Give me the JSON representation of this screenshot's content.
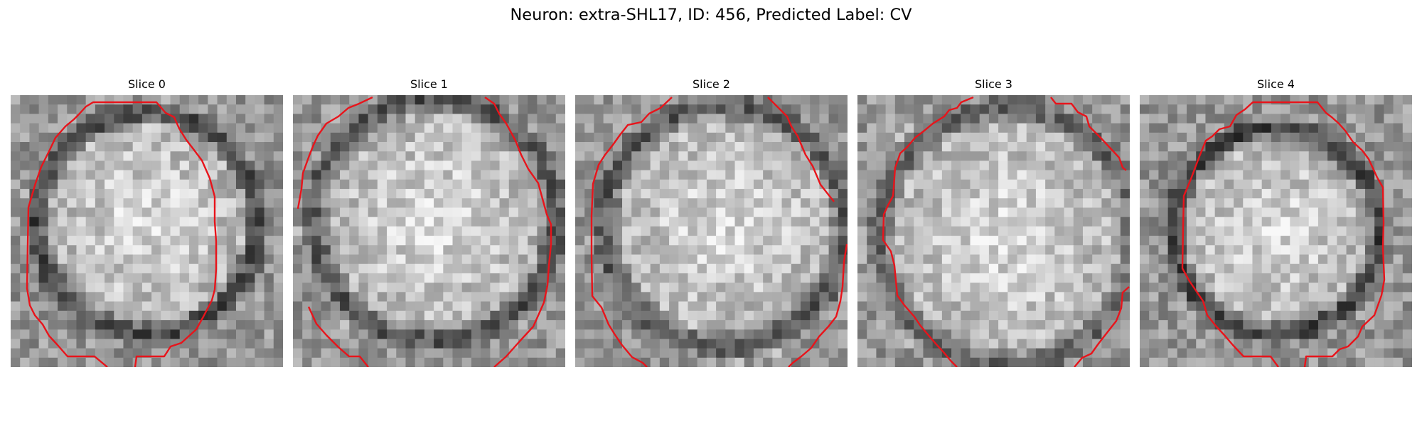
{
  "figure": {
    "title": "Neuron: extra-SHL17, ID: 456, Predicted Label: CV",
    "contour_color": "#e8141b"
  },
  "slices": [
    {
      "label": "Slice 0"
    },
    {
      "label": "Slice 1"
    },
    {
      "label": "Slice 2"
    },
    {
      "label": "Slice 3"
    },
    {
      "label": "Slice 4"
    }
  ]
}
